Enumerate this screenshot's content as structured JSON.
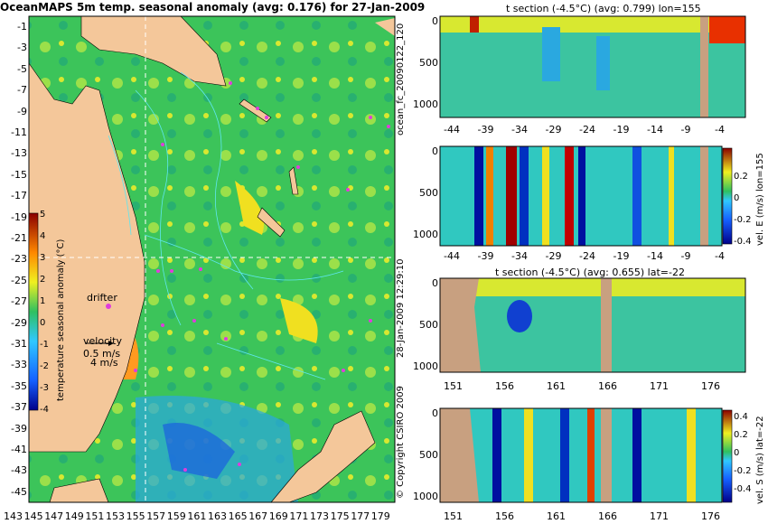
{
  "map": {
    "title": "OceanMAPS 5m temp. seasonal anomaly (avg: 0.176) for 27-Jan-2009",
    "lat_labels": [
      "-1",
      "-3",
      "-5",
      "-7",
      "-9",
      "-11",
      "-13",
      "-15",
      "-17",
      "-19",
      "-21",
      "-23",
      "-25",
      "-27",
      "-29",
      "-31",
      "-33",
      "-35",
      "-37",
      "-39",
      "-41",
      "-43",
      "-45"
    ],
    "lon_labels": [
      "143",
      "145",
      "147",
      "149",
      "151",
      "153",
      "155",
      "157",
      "159",
      "161",
      "163",
      "165",
      "167",
      "169",
      "171",
      "173",
      "175",
      "177",
      "179"
    ],
    "colorbar_ticks": [
      "5",
      "4",
      "3",
      "2",
      "1",
      "0",
      "-1",
      "-2",
      "-3",
      "-4"
    ],
    "colorbar_label": "temperature seasonal anomaly (°C)",
    "drifter_label": "drifter",
    "velocity_label": "velocity",
    "velocity_value": "0.5 m/s",
    "velocity_value2": "4 m/s",
    "colors": {
      "land": "#f4c79a",
      "ocean": "#2fc060",
      "contour": "#5ee7f0",
      "drifter": "#e03cdc"
    }
  },
  "panels": [
    {
      "title": "t section (-4.5°C) (avg: 0.799) lon=155",
      "x_labels": [
        "-44",
        "-39",
        "-34",
        "-29",
        "-24",
        "-19",
        "-14",
        "-9",
        "-4"
      ],
      "y_labels": [
        "0",
        "500",
        "1000"
      ]
    },
    {
      "title": "",
      "x_labels": [
        "-44",
        "-39",
        "-34",
        "-29",
        "-24",
        "-19",
        "-14",
        "-9",
        "-4"
      ],
      "y_labels": [
        "0",
        "500",
        "1000"
      ],
      "cbar_ticks": [
        "0.2",
        "0",
        "-0.2",
        "-0.4"
      ],
      "cbar_label": "vel. E (m/s) lon=155"
    },
    {
      "title": "t section (-4.5°C) (avg: 0.655) lat=-22",
      "x_labels": [
        "151",
        "156",
        "161",
        "166",
        "171",
        "176"
      ],
      "y_labels": [
        "0",
        "500",
        "1000"
      ]
    },
    {
      "title": "",
      "x_labels": [
        "151",
        "156",
        "161",
        "166",
        "171",
        "176"
      ],
      "y_labels": [
        "0",
        "500",
        "1000"
      ],
      "cbar_ticks": [
        "0.4",
        "0.2",
        "0",
        "-0.2",
        "-0.4"
      ],
      "cbar_label": "vel. S (m/s) lat=-22"
    }
  ],
  "side_labels": {
    "run": "ocean_fc_20090122_120",
    "date": "28-Jan-2009 12:29:10",
    "copyright": "© Copyright CSIRO 2009"
  }
}
